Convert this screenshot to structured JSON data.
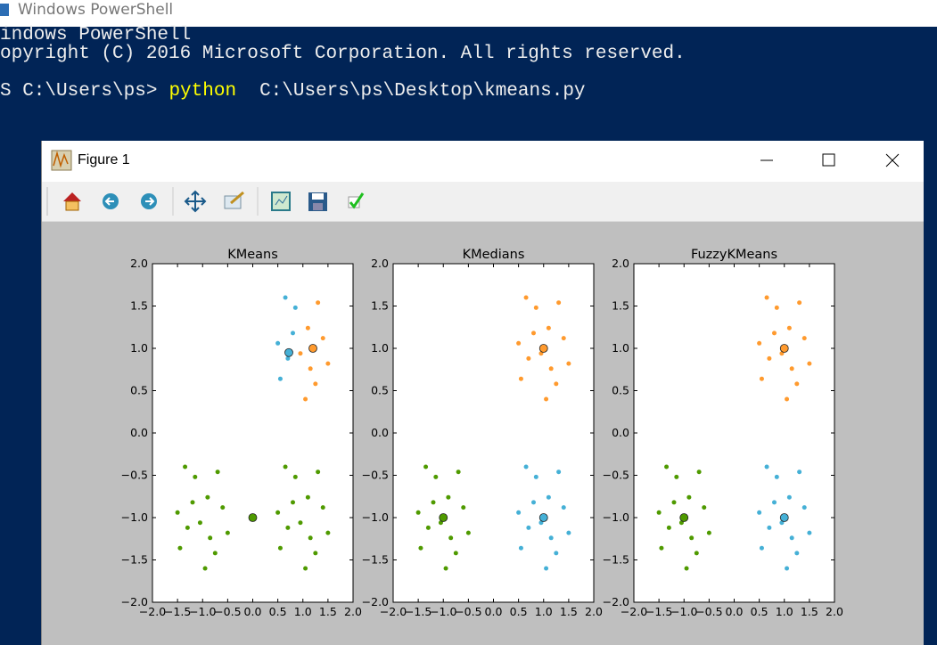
{
  "window": {
    "title": "Windows PowerShell"
  },
  "terminal": {
    "lines": [
      "indows PowerShell",
      "opyright (C) 2016 Microsoft Corporation. All rights reserved."
    ],
    "prompt": "S C:\\Users\\ps>",
    "command": "python",
    "args": "C:\\Users\\ps\\Desktop\\kmeans.py"
  },
  "figure": {
    "title": "Figure 1"
  },
  "chart_data": [
    {
      "type": "scatter",
      "title": "KMeans",
      "xlim": [
        -2,
        2
      ],
      "ylim": [
        -2,
        2
      ],
      "xticks": [
        {
          "value": -2,
          "label": "−2.0"
        },
        {
          "value": -1.5,
          "label": "−1.5"
        },
        {
          "value": -1,
          "label": "−1.0"
        },
        {
          "value": -0.5,
          "label": "−0.5"
        },
        {
          "value": 0,
          "label": "0.0"
        },
        {
          "value": 0.5,
          "label": "0.5"
        },
        {
          "value": 1,
          "label": "1.0"
        },
        {
          "value": 1.5,
          "label": "1.5"
        },
        {
          "value": 2,
          "label": "2.0"
        }
      ],
      "yticks": [
        {
          "value": -2,
          "label": "−2.0"
        },
        {
          "value": -1.5,
          "label": "−1.5"
        },
        {
          "value": -1,
          "label": "−1.0"
        },
        {
          "value": -0.5,
          "label": "−0.5"
        },
        {
          "value": 0,
          "label": "0.0"
        },
        {
          "value": 0.5,
          "label": "0.5"
        },
        {
          "value": 1,
          "label": "1.0"
        },
        {
          "value": 1.5,
          "label": "1.5"
        },
        {
          "value": 2,
          "label": "2.0"
        }
      ],
      "series": [
        {
          "color": "#4f9a00",
          "markersize": 2.5,
          "x": [
            -0.9,
            -1.3,
            -0.75,
            -1.15,
            -0.6,
            -1.45,
            -0.95,
            -1.2,
            -0.7,
            -1.35,
            -0.85,
            -1.05,
            -0.5,
            -1.5,
            1.1,
            0.7,
            1.25,
            0.85,
            1.4,
            0.55,
            1.05,
            0.8,
            1.3,
            0.65,
            1.15,
            0.95,
            1.5,
            0.5
          ],
          "values": [
            -0.76,
            -1.12,
            -1.42,
            -0.52,
            -0.88,
            -1.36,
            -1.6,
            -0.82,
            -0.46,
            -0.4,
            -1.24,
            -1.06,
            -1.18,
            -0.94,
            -0.76,
            -1.12,
            -1.42,
            -0.52,
            -0.88,
            -1.36,
            -1.6,
            -0.82,
            -0.46,
            -0.4,
            -1.24,
            -1.06,
            -1.18,
            -0.94
          ]
        },
        {
          "color": "#45b0d6",
          "markersize": 2.5,
          "x": [
            0.7,
            0.85,
            0.55,
            0.8,
            0.65,
            0.5
          ],
          "values": [
            0.88,
            1.48,
            0.64,
            1.18,
            1.6,
            1.06
          ]
        },
        {
          "color": "#ff9a2e",
          "markersize": 2.5,
          "x": [
            1.1,
            1.25,
            1.4,
            1.05,
            1.3,
            1.15,
            0.95,
            1.5
          ],
          "values": [
            1.24,
            0.58,
            1.12,
            0.4,
            1.54,
            0.76,
            0.94,
            0.82
          ]
        },
        {
          "color": "#4f9a00",
          "markersize": 4.5,
          "x": [
            0
          ],
          "values": [
            -1
          ]
        },
        {
          "color": "#45b0d6",
          "markersize": 4.5,
          "x": [
            0.72
          ],
          "values": [
            0.95
          ]
        },
        {
          "color": "#ff9a2e",
          "markersize": 4.5,
          "x": [
            1.2
          ],
          "values": [
            1
          ]
        }
      ]
    },
    {
      "type": "scatter",
      "title": "KMedians",
      "xlim": [
        -2,
        2
      ],
      "ylim": [
        -2,
        2
      ],
      "xticks": [
        {
          "value": -2,
          "label": "−2.0"
        },
        {
          "value": -1.5,
          "label": "−1.5"
        },
        {
          "value": -1,
          "label": "−1.0"
        },
        {
          "value": -0.5,
          "label": "−0.5"
        },
        {
          "value": 0,
          "label": "0.0"
        },
        {
          "value": 0.5,
          "label": "0.5"
        },
        {
          "value": 1,
          "label": "1.0"
        },
        {
          "value": 1.5,
          "label": "1.5"
        },
        {
          "value": 2,
          "label": "2.0"
        }
      ],
      "yticks": [
        {
          "value": -2,
          "label": "−2.0"
        },
        {
          "value": -1.5,
          "label": "−1.5"
        },
        {
          "value": -1,
          "label": "−1.0"
        },
        {
          "value": -0.5,
          "label": "−0.5"
        },
        {
          "value": 0,
          "label": "0.0"
        },
        {
          "value": 0.5,
          "label": "0.5"
        },
        {
          "value": 1,
          "label": "1.0"
        },
        {
          "value": 1.5,
          "label": "1.5"
        },
        {
          "value": 2,
          "label": "2.0"
        }
      ],
      "series": [
        {
          "color": "#4f9a00",
          "markersize": 2.5,
          "x": [
            -0.9,
            -1.3,
            -0.75,
            -1.15,
            -0.6,
            -1.45,
            -0.95,
            -1.2,
            -0.7,
            -1.35,
            -0.85,
            -1.05,
            -0.5,
            -1.5
          ],
          "values": [
            -0.76,
            -1.12,
            -1.42,
            -0.52,
            -0.88,
            -1.36,
            -1.6,
            -0.82,
            -0.46,
            -0.4,
            -1.24,
            -1.06,
            -1.18,
            -0.94
          ]
        },
        {
          "color": "#45b0d6",
          "markersize": 2.5,
          "x": [
            1.1,
            0.7,
            1.25,
            0.85,
            1.4,
            0.55,
            1.05,
            0.8,
            1.3,
            0.65,
            1.15,
            0.95,
            1.5,
            0.5
          ],
          "values": [
            -0.76,
            -1.12,
            -1.42,
            -0.52,
            -0.88,
            -1.36,
            -1.6,
            -0.82,
            -0.46,
            -0.4,
            -1.24,
            -1.06,
            -1.18,
            -0.94
          ]
        },
        {
          "color": "#ff9a2e",
          "markersize": 2.5,
          "x": [
            1.1,
            0.7,
            1.25,
            0.85,
            1.4,
            0.55,
            1.05,
            0.8,
            1.3,
            0.65,
            1.15,
            0.95,
            1.5,
            0.5
          ],
          "values": [
            1.24,
            0.88,
            0.58,
            1.48,
            1.12,
            0.64,
            0.4,
            1.18,
            1.54,
            1.6,
            0.76,
            0.94,
            0.82,
            1.06
          ]
        },
        {
          "color": "#4f9a00",
          "markersize": 4.5,
          "x": [
            -1
          ],
          "values": [
            -1
          ]
        },
        {
          "color": "#45b0d6",
          "markersize": 4.5,
          "x": [
            1
          ],
          "values": [
            -1
          ]
        },
        {
          "color": "#ff9a2e",
          "markersize": 4.5,
          "x": [
            1
          ],
          "values": [
            1
          ]
        }
      ]
    },
    {
      "type": "scatter",
      "title": "FuzzyKMeans",
      "xlim": [
        -2,
        2
      ],
      "ylim": [
        -2,
        2
      ],
      "xticks": [
        {
          "value": -2,
          "label": "−2.0"
        },
        {
          "value": -1.5,
          "label": "−1.5"
        },
        {
          "value": -1,
          "label": "−1.0"
        },
        {
          "value": -0.5,
          "label": "−0.5"
        },
        {
          "value": 0,
          "label": "0.0"
        },
        {
          "value": 0.5,
          "label": "0.5"
        },
        {
          "value": 1,
          "label": "1.0"
        },
        {
          "value": 1.5,
          "label": "1.5"
        },
        {
          "value": 2,
          "label": "2.0"
        }
      ],
      "yticks": [
        {
          "value": -2,
          "label": "−2.0"
        },
        {
          "value": -1.5,
          "label": "−1.5"
        },
        {
          "value": -1,
          "label": "−1.0"
        },
        {
          "value": -0.5,
          "label": "−0.5"
        },
        {
          "value": 0,
          "label": "0.0"
        },
        {
          "value": 0.5,
          "label": "0.5"
        },
        {
          "value": 1,
          "label": "1.0"
        },
        {
          "value": 1.5,
          "label": "1.5"
        },
        {
          "value": 2,
          "label": "2.0"
        }
      ],
      "series": [
        {
          "color": "#4f9a00",
          "markersize": 2.5,
          "x": [
            -0.9,
            -1.3,
            -0.75,
            -1.15,
            -0.6,
            -1.45,
            -0.95,
            -1.2,
            -0.7,
            -1.35,
            -0.85,
            -1.05,
            -0.5,
            -1.5
          ],
          "values": [
            -0.76,
            -1.12,
            -1.42,
            -0.52,
            -0.88,
            -1.36,
            -1.6,
            -0.82,
            -0.46,
            -0.4,
            -1.24,
            -1.06,
            -1.18,
            -0.94
          ]
        },
        {
          "color": "#45b0d6",
          "markersize": 2.5,
          "x": [
            1.1,
            0.7,
            1.25,
            0.85,
            1.4,
            0.55,
            1.05,
            0.8,
            1.3,
            0.65,
            1.15,
            0.95,
            1.5,
            0.5
          ],
          "values": [
            -0.76,
            -1.12,
            -1.42,
            -0.52,
            -0.88,
            -1.36,
            -1.6,
            -0.82,
            -0.46,
            -0.4,
            -1.24,
            -1.06,
            -1.18,
            -0.94
          ]
        },
        {
          "color": "#ff9a2e",
          "markersize": 2.5,
          "x": [
            1.1,
            0.7,
            1.25,
            0.85,
            1.4,
            0.55,
            1.05,
            0.8,
            1.3,
            0.65,
            1.15,
            0.95,
            1.5,
            0.5
          ],
          "values": [
            1.24,
            0.88,
            0.58,
            1.48,
            1.12,
            0.64,
            0.4,
            1.18,
            1.54,
            1.6,
            0.76,
            0.94,
            0.82,
            1.06
          ]
        },
        {
          "color": "#4f9a00",
          "markersize": 4.5,
          "x": [
            -1
          ],
          "values": [
            -1
          ]
        },
        {
          "color": "#45b0d6",
          "markersize": 4.5,
          "x": [
            1
          ],
          "values": [
            -1
          ]
        },
        {
          "color": "#ff9a2e",
          "markersize": 4.5,
          "x": [
            1
          ],
          "values": [
            1
          ]
        }
      ]
    }
  ]
}
